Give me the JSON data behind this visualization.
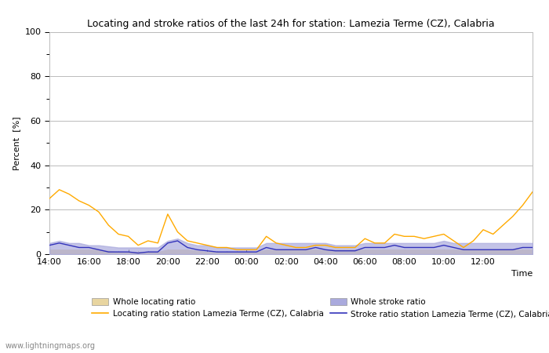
{
  "title": "Locating and stroke ratios of the last 24h for station: Lamezia Terme (CZ), Calabria",
  "ylabel": "Percent  [%]",
  "xlabel": "Time",
  "ylim": [
    0,
    100
  ],
  "yticks": [
    0,
    20,
    40,
    60,
    80,
    100
  ],
  "xtick_labels": [
    "14:00",
    "16:00",
    "18:00",
    "20:00",
    "22:00",
    "00:00",
    "02:00",
    "04:00",
    "06:00",
    "08:00",
    "10:00",
    "12:00",
    ""
  ],
  "watermark": "www.lightningmaps.org",
  "background_color": "#ffffff",
  "plot_bg_color": "#ffffff",
  "grid_color": "#bbbbbb",
  "locating_x": [
    0,
    0.5,
    1,
    1.5,
    2,
    2.5,
    3,
    3.5,
    4,
    4.5,
    5,
    5.5,
    6,
    6.5,
    7,
    7.5,
    8,
    8.5,
    9,
    9.5,
    10,
    10.5,
    11,
    11.5,
    12,
    12.5,
    13,
    13.5,
    14,
    14.5,
    15,
    15.5,
    16,
    16.5,
    17,
    17.5,
    18,
    18.5,
    19,
    19.5,
    20,
    20.5,
    21,
    21.5,
    22,
    22.5,
    23,
    23.5,
    24,
    24.5
  ],
  "locating_y": [
    25,
    29,
    27,
    24,
    22,
    19,
    13,
    9,
    8,
    4,
    6,
    5,
    18,
    10,
    6,
    5,
    4,
    3,
    3,
    2,
    2,
    2,
    8,
    5,
    4,
    3,
    3,
    4,
    4,
    3,
    3,
    3,
    7,
    5,
    5,
    9,
    8,
    8,
    7,
    8,
    9,
    6,
    3,
    6,
    11,
    9,
    13,
    17,
    22,
    28
  ],
  "stroke_x": [
    0,
    0.5,
    1,
    1.5,
    2,
    2.5,
    3,
    3.5,
    4,
    4.5,
    5,
    5.5,
    6,
    6.5,
    7,
    7.5,
    8,
    8.5,
    9,
    9.5,
    10,
    10.5,
    11,
    11.5,
    12,
    12.5,
    13,
    13.5,
    14,
    14.5,
    15,
    15.5,
    16,
    16.5,
    17,
    17.5,
    18,
    18.5,
    19,
    19.5,
    20,
    20.5,
    21,
    21.5,
    22,
    22.5,
    23,
    23.5,
    24,
    24.5
  ],
  "stroke_y": [
    4,
    5,
    4,
    3,
    3,
    2,
    1,
    1,
    1,
    0.5,
    1,
    1,
    5,
    6,
    3,
    2,
    1.5,
    1,
    1,
    1,
    1,
    1,
    3,
    2,
    2,
    2,
    2,
    3,
    2,
    1.5,
    1.5,
    1.5,
    3,
    3,
    3,
    4,
    3,
    3,
    3,
    3,
    4,
    3,
    2,
    2,
    2,
    2,
    2,
    2,
    3,
    3
  ],
  "whole_loc_x": [
    0,
    0.5,
    1,
    1.5,
    2,
    2.5,
    3,
    3.5,
    4,
    4.5,
    5,
    5.5,
    6,
    6.5,
    7,
    7.5,
    8,
    8.5,
    9,
    9.5,
    10,
    10.5,
    11,
    11.5,
    12,
    12.5,
    13,
    13.5,
    14,
    14.5,
    15,
    15.5,
    16,
    16.5,
    17,
    17.5,
    18,
    18.5,
    19,
    19.5,
    20,
    20.5,
    21,
    21.5,
    22,
    22.5,
    23,
    23.5,
    24,
    24.5
  ],
  "whole_loc_y": [
    2,
    2,
    2,
    2,
    2,
    2,
    1.5,
    1,
    1,
    1,
    1,
    1,
    2,
    2,
    2,
    1.5,
    1,
    1,
    1,
    1,
    1,
    1,
    2,
    2,
    2,
    2,
    2,
    2,
    2,
    2,
    2,
    2,
    2,
    2,
    2,
    2,
    2,
    2,
    2,
    2,
    2,
    2,
    2,
    2,
    2,
    2,
    2,
    2,
    2,
    2
  ],
  "whole_stroke_x": [
    0,
    0.5,
    1,
    1.5,
    2,
    2.5,
    3,
    3.5,
    4,
    4.5,
    5,
    5.5,
    6,
    6.5,
    7,
    7.5,
    8,
    8.5,
    9,
    9.5,
    10,
    10.5,
    11,
    11.5,
    12,
    12.5,
    13,
    13.5,
    14,
    14.5,
    15,
    15.5,
    16,
    16.5,
    17,
    17.5,
    18,
    18.5,
    19,
    19.5,
    20,
    20.5,
    21,
    21.5,
    22,
    22.5,
    23,
    23.5,
    24,
    24.5
  ],
  "whole_stroke_y": [
    5,
    6,
    5,
    5,
    4,
    4,
    3.5,
    3,
    3,
    3,
    3,
    3,
    6,
    7,
    5,
    4,
    4,
    3,
    3,
    3,
    3,
    3,
    5,
    5,
    5,
    5,
    5,
    5,
    5,
    4,
    4,
    4,
    5,
    5,
    5,
    5,
    5,
    5,
    5,
    5,
    6,
    5,
    5,
    5,
    5,
    5,
    5,
    5,
    5,
    5
  ],
  "color_locating_line": "#ffaa00",
  "color_stroke_line": "#3333bb",
  "color_whole_loc_fill": "#e8d5a0",
  "color_whole_stroke_fill": "#aaaadd",
  "legend_loc_fill": "Whole locating ratio",
  "legend_stroke_fill": "Whole stroke ratio",
  "legend_loc_line": "Locating ratio station Lamezia Terme (CZ), Calabria",
  "legend_stroke_line": "Stroke ratio station Lamezia Terme (CZ), Calabria"
}
